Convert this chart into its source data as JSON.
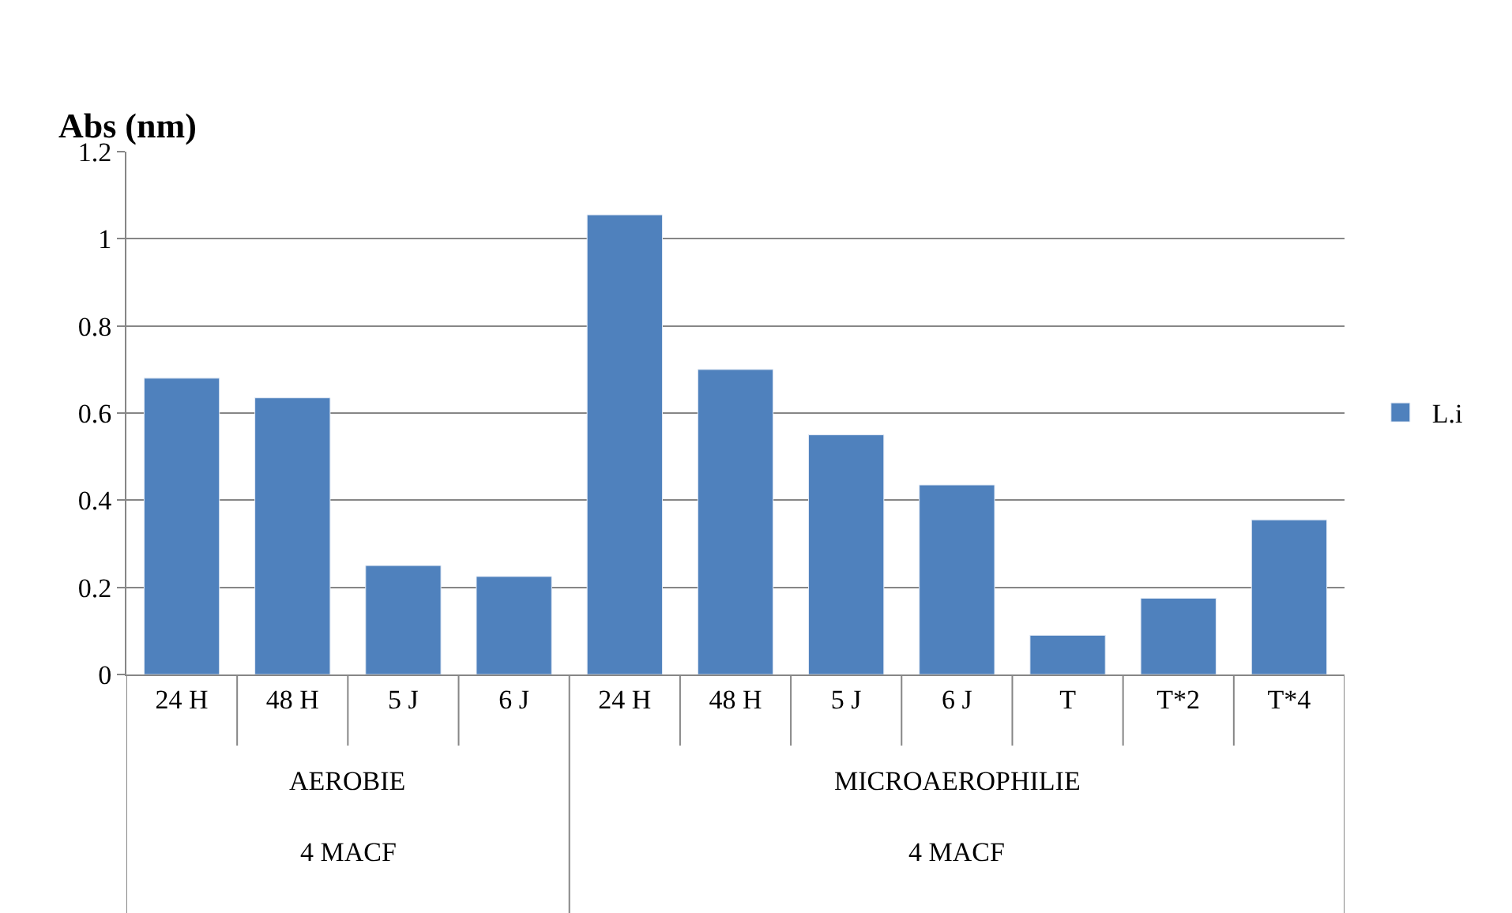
{
  "chart_data": {
    "type": "bar",
    "ylabel": "Abs (nm)",
    "categories": [
      "24 H",
      "48 H",
      "5 J",
      "6 J",
      "24 H",
      "48 H",
      "5 J",
      "6 J",
      "T",
      "T*2",
      "T*4"
    ],
    "series": [
      {
        "name": "L.i",
        "color": "#4f81bd",
        "values": [
          0.68,
          0.635,
          0.25,
          0.225,
          1.055,
          0.7,
          0.55,
          0.435,
          0.09,
          0.175,
          0.355
        ]
      }
    ],
    "annotations": [
      "AEROBIE",
      "MICROAEROPHILIE",
      "4 MACF",
      "4 MACF"
    ],
    "ylim": [
      0,
      1.2
    ],
    "yticks": [
      0,
      0.2,
      0.4,
      0.6,
      0.8,
      1,
      1.2
    ],
    "grid": "y",
    "legend": "right"
  }
}
